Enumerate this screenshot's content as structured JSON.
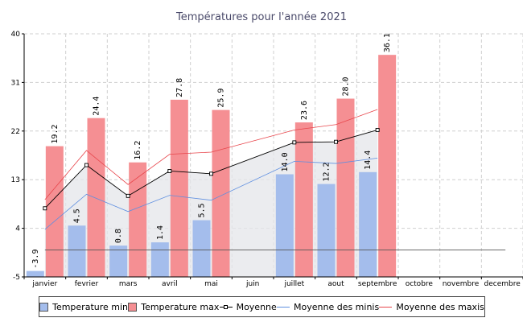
{
  "chart_data": {
    "type": "bar",
    "title": "Températures pour l'année 2021",
    "categories": [
      "janvier",
      "fevrier",
      "mars",
      "avril",
      "mai",
      "juin",
      "juillet",
      "aout",
      "septembre",
      "octobre",
      "novembre",
      "decembre"
    ],
    "ylim": [
      -5,
      40
    ],
    "yticks": [
      -5,
      4,
      13,
      22,
      31,
      40
    ],
    "grid": true,
    "series": [
      {
        "name": "Temperature min",
        "kind": "bar",
        "color": "#a4bdec",
        "values": [
          -3.9,
          4.5,
          0.8,
          1.4,
          5.5,
          null,
          14.0,
          12.2,
          14.4,
          null,
          null,
          null
        ],
        "labels": [
          "-3.9",
          "4.5",
          "0.8",
          "1.4",
          "5.5",
          null,
          "14.0",
          "12.2",
          "14.4",
          null,
          null,
          null
        ]
      },
      {
        "name": "Temperature max",
        "kind": "bar",
        "color": "#f58f93",
        "values": [
          19.2,
          24.4,
          16.2,
          27.8,
          25.9,
          null,
          23.6,
          28.0,
          36.1,
          null,
          null,
          null
        ],
        "labels": [
          "19.2",
          "24.4",
          "16.2",
          "27.8",
          "25.9",
          null,
          "23.6",
          "28.0",
          "36.1",
          null,
          null,
          null
        ]
      },
      {
        "name": "Moyenne",
        "kind": "line",
        "color": "#000000",
        "marker": "square",
        "values": [
          7.7,
          15.7,
          10.0,
          14.6,
          14.1,
          null,
          19.9,
          20.0,
          22.2,
          null,
          null,
          null
        ]
      },
      {
        "name": "Moyenne des minis",
        "kind": "line",
        "color": "#5f8fe0",
        "values": [
          3.8,
          10.3,
          7.1,
          10.1,
          9.2,
          null,
          16.4,
          16.0,
          17.0,
          null,
          null,
          null
        ]
      },
      {
        "name": "Moyenne des maxis",
        "kind": "line",
        "color": "#e8464c",
        "values": [
          9.3,
          18.4,
          12.1,
          17.7,
          18.1,
          null,
          22.2,
          23.2,
          26.0,
          null,
          null,
          null
        ]
      }
    ],
    "reference_line": {
      "value": 0,
      "color": "#555555"
    }
  }
}
